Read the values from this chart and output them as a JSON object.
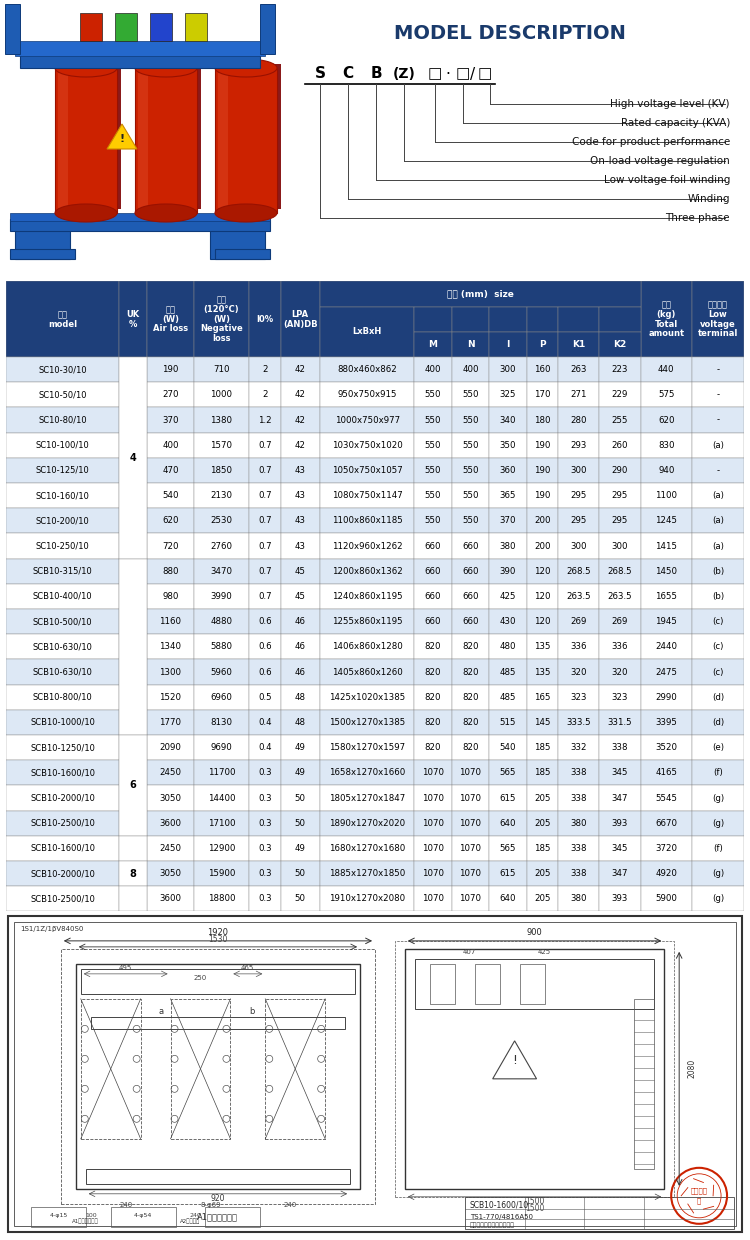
{
  "title": "MODEL DESCRIPTION",
  "model_labels": [
    "High voltage level (KV)",
    "Rated capacity (KVA)",
    "Code for product performance",
    "On-load voltage regulation",
    "Low voltage foil winding",
    "Winding",
    "Three phase"
  ],
  "table_header_bg": "#1e3f7a",
  "table_header_color": "#ffffff",
  "table_alt_row": "#dde8f5",
  "table_row_color": "#ffffff",
  "table_border_color": "#888888",
  "rows": [
    [
      "SC10-30/10",
      "",
      190,
      710,
      "2",
      42,
      "880x460x862",
      400,
      400,
      300,
      160,
      263,
      223,
      440,
      "-"
    ],
    [
      "SC10-50/10",
      "",
      270,
      1000,
      "2",
      42,
      "950x750x915",
      550,
      550,
      325,
      170,
      271,
      229,
      575,
      "-"
    ],
    [
      "SC10-80/10",
      "",
      370,
      1380,
      "1.2",
      42,
      "1000x750x977",
      550,
      550,
      340,
      180,
      280,
      255,
      620,
      "-"
    ],
    [
      "SC10-100/10",
      "",
      400,
      1570,
      "0.7",
      42,
      "1030x750x1020",
      550,
      550,
      350,
      190,
      293,
      260,
      830,
      "(a)"
    ],
    [
      "SC10-125/10",
      "",
      470,
      1850,
      "0.7",
      43,
      "1050x750x1057",
      550,
      550,
      360,
      190,
      300,
      290,
      940,
      "-"
    ],
    [
      "SC10-160/10",
      "4",
      540,
      2130,
      "0.7",
      43,
      "1080x750x1147",
      550,
      550,
      365,
      190,
      295,
      295,
      1100,
      "(a)"
    ],
    [
      "SC10-200/10",
      "",
      620,
      2530,
      "0.7",
      43,
      "1100x860x1185",
      550,
      550,
      370,
      200,
      295,
      295,
      1245,
      "(a)"
    ],
    [
      "SC10-250/10",
      "",
      720,
      2760,
      "0.7",
      43,
      "1120x960x1262",
      660,
      660,
      380,
      200,
      300,
      300,
      1415,
      "(a)"
    ],
    [
      "SCB10-315/10",
      "",
      880,
      3470,
      "0.7",
      45,
      "1200x860x1362",
      660,
      660,
      390,
      120,
      "268.5",
      "268.5",
      1450,
      "(b)"
    ],
    [
      "SCB10-400/10",
      "",
      980,
      3990,
      "0.7",
      45,
      "1240x860x1195",
      660,
      660,
      425,
      120,
      "263.5",
      "263.5",
      1655,
      "(b)"
    ],
    [
      "SCB10-500/10",
      "",
      1160,
      4880,
      "0.6",
      46,
      "1255x860x1195",
      660,
      660,
      430,
      120,
      269,
      269,
      1945,
      "(c)"
    ],
    [
      "SCB10-630/10",
      "",
      1340,
      5880,
      "0.6",
      46,
      "1406x860x1280",
      820,
      820,
      480,
      135,
      336,
      336,
      2440,
      "(c)"
    ],
    [
      "SCB10-630/10",
      "",
      1300,
      5960,
      "0.6",
      46,
      "1405x860x1260",
      820,
      820,
      485,
      135,
      320,
      320,
      2475,
      "(c)"
    ],
    [
      "SCB10-800/10",
      "",
      1520,
      6960,
      "0.5",
      48,
      "1425x1020x1385",
      820,
      820,
      485,
      165,
      323,
      323,
      2990,
      "(d)"
    ],
    [
      "SCB10-1000/10",
      "",
      1770,
      8130,
      "0.4",
      48,
      "1500x1270x1385",
      820,
      820,
      515,
      145,
      "333.5",
      "331.5",
      3395,
      "(d)"
    ],
    [
      "SCB10-1250/10",
      "6",
      2090,
      9690,
      "0.4",
      49,
      "1580x1270x1597",
      820,
      820,
      540,
      185,
      332,
      338,
      3520,
      "(e)"
    ],
    [
      "SCB10-1600/10",
      "",
      2450,
      11700,
      "0.3",
      49,
      "1658x1270x1660",
      1070,
      1070,
      565,
      185,
      338,
      345,
      4165,
      "(f)"
    ],
    [
      "SCB10-2000/10",
      "",
      3050,
      14400,
      "0.3",
      50,
      "1805x1270x1847",
      1070,
      1070,
      615,
      205,
      338,
      347,
      5545,
      "(g)"
    ],
    [
      "SCB10-2500/10",
      "",
      3600,
      17100,
      "0.3",
      50,
      "1890x1270x2020",
      1070,
      1070,
      640,
      205,
      380,
      393,
      6670,
      "(g)"
    ],
    [
      "SCB10-1600/10",
      "",
      2450,
      12900,
      "0.3",
      49,
      "1680x1270x1680",
      1070,
      1070,
      565,
      185,
      338,
      345,
      3720,
      "(f)"
    ],
    [
      "SCB10-2000/10",
      "8",
      3050,
      15900,
      "0.3",
      50,
      "1885x1270x1850",
      1070,
      1070,
      615,
      205,
      338,
      347,
      4920,
      "(g)"
    ],
    [
      "SCB10-2500/10",
      "",
      3600,
      18800,
      "0.3",
      50,
      "1910x1270x2080",
      1070,
      1070,
      640,
      205,
      380,
      393,
      5900,
      "(g)"
    ]
  ],
  "uk_merges": [
    [
      0,
      7,
      "4"
    ],
    [
      8,
      14,
      ""
    ],
    [
      15,
      18,
      "6"
    ],
    [
      19,
      19,
      ""
    ],
    [
      20,
      20,
      "8"
    ],
    [
      21,
      21,
      ""
    ]
  ],
  "bg_color": "#ffffff",
  "drawing_bg": "#e0e8f0"
}
